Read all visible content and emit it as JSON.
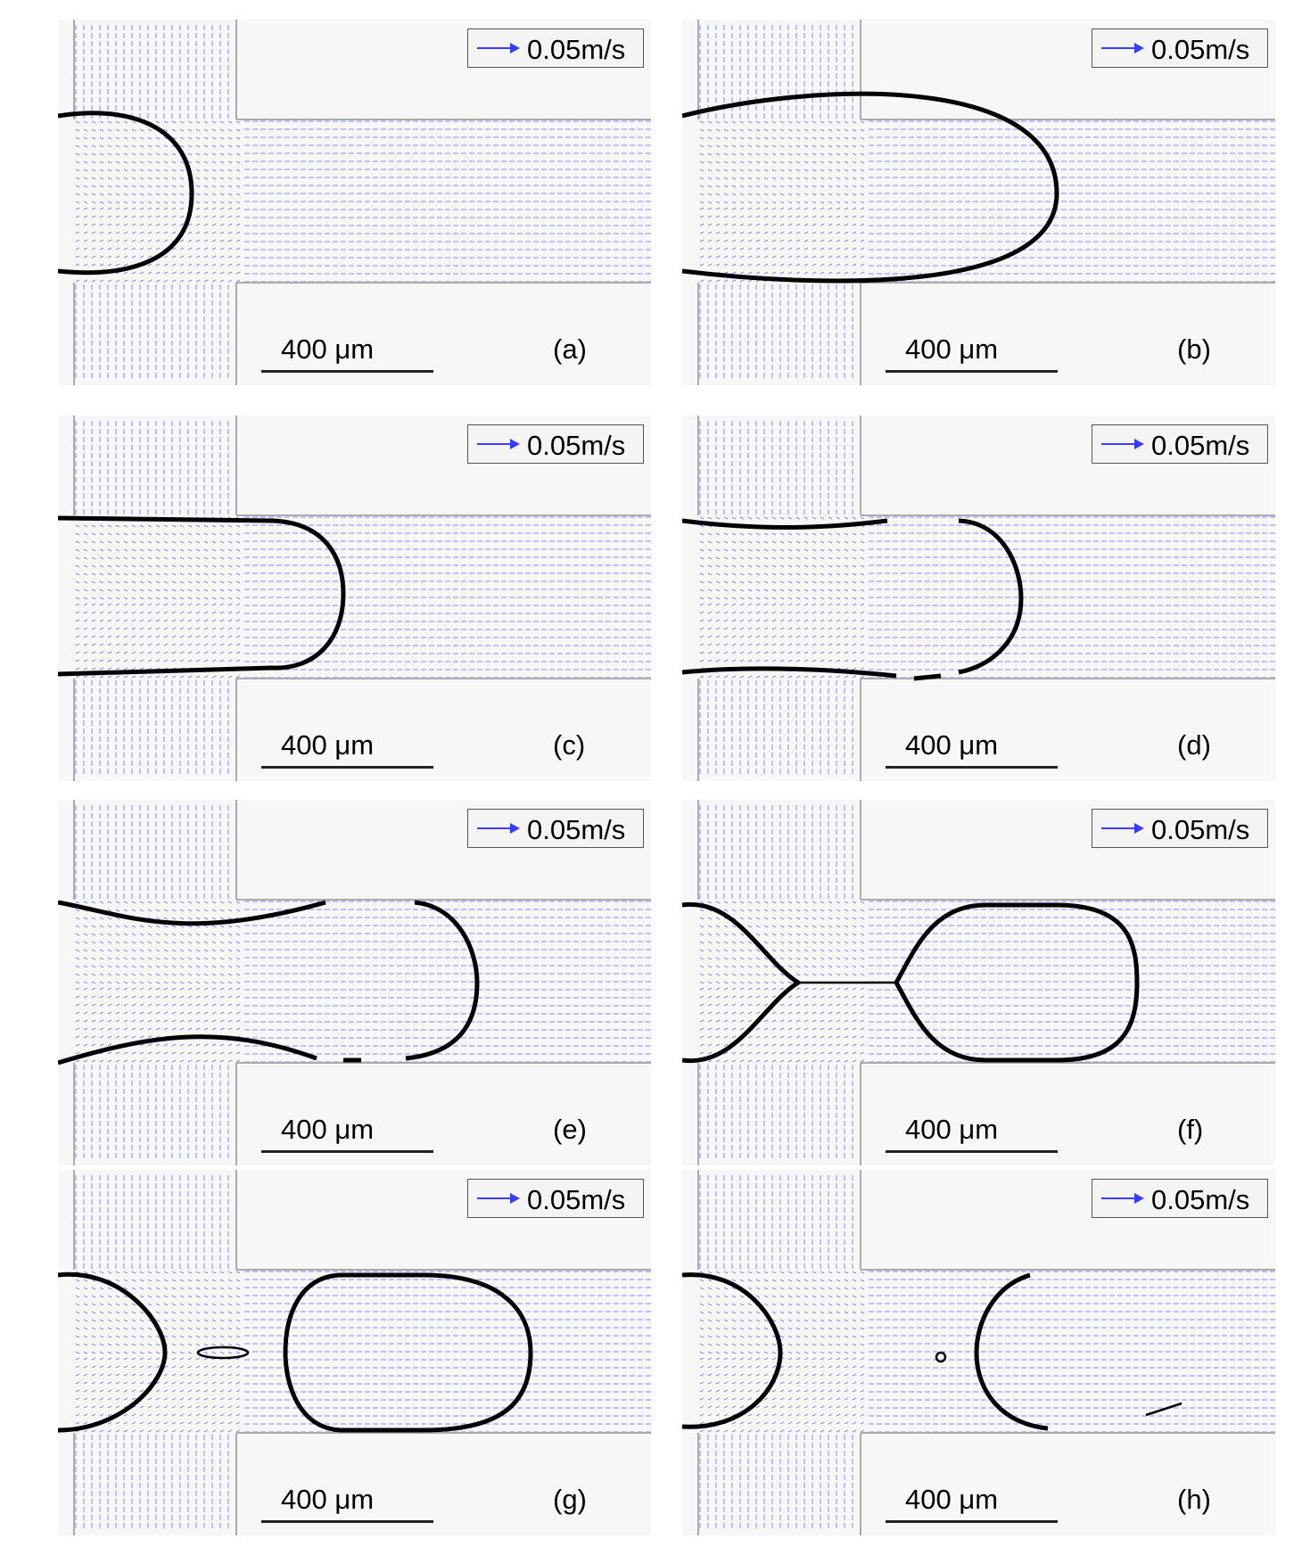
{
  "colors": {
    "vectors": "#3b3bff",
    "walls": "#aaaaaa",
    "interface": "#000000",
    "background": "#f7f7f7"
  },
  "panels": [
    {
      "label": "(a)",
      "velocity_scale": "0.05m/s",
      "scale_bar": "400 μm"
    },
    {
      "label": "(b)",
      "velocity_scale": "0.05m/s",
      "scale_bar": "400 μm"
    },
    {
      "label": "(c)",
      "velocity_scale": "0.05m/s",
      "scale_bar": "400 μm"
    },
    {
      "label": "(d)",
      "velocity_scale": "0.05m/s",
      "scale_bar": "400 μm"
    },
    {
      "label": "(e)",
      "velocity_scale": "0.05m/s",
      "scale_bar": "400 μm"
    },
    {
      "label": "(f)",
      "velocity_scale": "0.05m/s",
      "scale_bar": "400 μm"
    },
    {
      "label": "(g)",
      "velocity_scale": "0.05m/s",
      "scale_bar": "400 μm"
    },
    {
      "label": "(h)",
      "velocity_scale": "0.05m/s",
      "scale_bar": "400 μm"
    }
  ]
}
